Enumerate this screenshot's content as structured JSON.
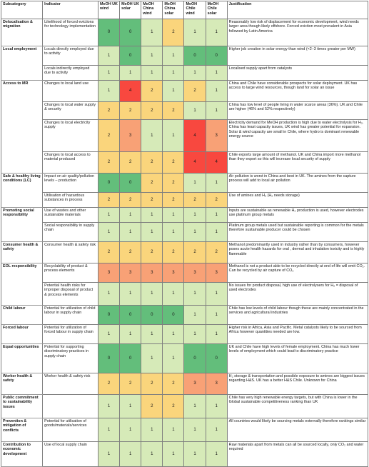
{
  "headers": [
    "Subcategory",
    "Indicator",
    "MeOH UK wind",
    "MeOH UK solar",
    "MeOH China wind",
    "MeOH China solar",
    "MeOH Chile wind",
    "MeOH Chile solar",
    "Justification"
  ],
  "score_colors": {
    "0": "#63be7b",
    "1": "#d6eab8",
    "2": "#fad57c",
    "3": "#f8a176",
    "4": "#f8483f"
  },
  "rows": [
    {
      "sub": "Delocalisation & migration",
      "span": 1,
      "ind": "Likelihood of forced evictions for technology implementation",
      "s": [
        0,
        0,
        1,
        2,
        1,
        1
      ],
      "just": "Reasonably low risk of displacement for economic development, wind needs larger area though likely offshore. Forced eviction most prevalent in Asia followed by Latin America",
      "h": 38
    },
    {
      "sub": "Local employment",
      "span": 2,
      "ind": "Locals directly employed due to activity",
      "s": [
        1,
        0,
        1,
        1,
        0,
        0
      ],
      "just": "Higher job creation in solar energy than wind (×2–3 times greater per MW)",
      "h": 27
    },
    {
      "ind": "Locals indirectly employed due to activity",
      "s": [
        1,
        1,
        1,
        1,
        1,
        1
      ],
      "just": "Localised supply apart from catalysts",
      "h": 21
    },
    {
      "sub": "Access to MR",
      "span": 4,
      "ind": "Changes to local land use",
      "s": [
        1,
        4,
        2,
        1,
        2,
        1
      ],
      "just": "China and Chile have considerable prospects for solar deployment. UK has access to large wind resources, though land for solar an issue",
      "h": 30
    },
    {
      "ind": "Changes to local water supply & security",
      "s": [
        2,
        2,
        2,
        2,
        1,
        1
      ],
      "just": "China has low level of people living in water scarce areas (36%). UK and Chile are higher (46% and 52% respectively)",
      "h": 25
    },
    {
      "ind": "Changes to local electricity supply",
      "s": [
        2,
        3,
        1,
        1,
        4,
        3
      ],
      "just": "Electricity demand for MeOH production is high due to water electrolysis for H₂. China has least capacity issues, UK wind has greater potential for expansion. Solar & wind capacity are small in Chile, where hydro is dominant renewable energy source",
      "h": 45
    },
    {
      "ind": "Changes to local access to material produced",
      "s": [
        2,
        2,
        2,
        2,
        4,
        4
      ],
      "just": "Chile exports large amount of methanol. UK and China import more methanol than they export so this will increase local security of supply",
      "h": 30
    },
    {
      "sub": "Safe & healthy living conditions (LC)",
      "span": 2,
      "ind": "Impact on air quality/pollution levels – production",
      "s": [
        0,
        0,
        2,
        2,
        1,
        1
      ],
      "just": "Air pollution is worst in China and best in UK. The amines from the capture process will add to local air pollution",
      "h": 27
    },
    {
      "ind": "Utilisation of hazardous substances in process",
      "s": [
        2,
        2,
        2,
        2,
        2,
        2
      ],
      "just": "Use of amines and H₂ (H₂ needs storage)",
      "h": 21
    },
    {
      "sub": "Promoting social responsibility",
      "span": 2,
      "ind": "Use of wastes and other sustainable materials",
      "s": [
        1,
        1,
        1,
        1,
        1,
        1
      ],
      "just": "Inputs are sustainable as renewable H₂ production is used, however electrodes use platinum group metals",
      "h": 21
    },
    {
      "ind": "Social responsibility in supply chain",
      "s": [
        1,
        1,
        1,
        1,
        1,
        1
      ],
      "just": "Platinum group metals used but sustainable reporting is common for the metals therefore sustainable producer could be chosen",
      "h": 27
    },
    {
      "sub": "Consumer health & safety",
      "span": 1,
      "ind": "Consumer health & safety risk",
      "s": [
        2,
        2,
        2,
        2,
        2,
        2
      ],
      "just": "Methanol predominantly used in industry rather than by consumers, however poses acute health hazards for oral , dermal and inhalation toxicity and is highly flammable",
      "h": 30
    },
    {
      "sub": "EOL responsibility",
      "span": 2,
      "ind": "Recyclability of product & process elements",
      "s": [
        3,
        3,
        3,
        3,
        3,
        3
      ],
      "just": "Methanol is not a product able to be recycled directly at end of life will emit CO₂. Can be recycled by air capture of CO₂",
      "h": 27
    },
    {
      "ind": "Potential health risks for improper disposal of product & process elements",
      "s": [
        1,
        1,
        1,
        1,
        1,
        1
      ],
      "just": "No issues for product disposal, high use of electrolysers for H₂ = disposal of used electrodes",
      "h": 32
    },
    {
      "sub": "Child labour",
      "span": 1,
      "ind": "Potential for utilization of child labour in supply chain",
      "s": [
        0,
        0,
        0,
        0,
        1,
        1
      ],
      "just": "Chile has low levels of child labour though these are mainly concentrated in the services and agricultural industries",
      "h": 27
    },
    {
      "sub": "Forced labour",
      "span": 1,
      "ind": "Potential for utilization of forced labour in supply chain",
      "s": [
        1,
        1,
        1,
        1,
        1,
        1
      ],
      "just": "Higher risk in Africa, Asia and Pacific. Metal catalysts likely to be sourced from Africa however quantities needed are low.",
      "h": 27
    },
    {
      "sub": "Equal opportunities",
      "span": 1,
      "ind": "Potential for supporting discriminatory practices in supply chain",
      "s": [
        0,
        0,
        1,
        1,
        0,
        0
      ],
      "just": "UK and Chile have high levels of female employment. China has much lower levels of employment which could lead to discriminatory practice",
      "h": 41
    },
    {
      "sub": "Worker health & safety",
      "span": 1,
      "ind": "Worker health & safety risk",
      "s": [
        2,
        2,
        2,
        2,
        3,
        3
      ],
      "just": "H₂ storage & transportation and possible exposure to amines are biggest issues regarding H&S. UK has a better H&S Chile. Unknown for China",
      "h": 30
    },
    {
      "sub": "Public commitment to sustainability issues",
      "span": 1,
      "ind": "",
      "s": [
        1,
        1,
        2,
        2,
        1,
        1
      ],
      "just": "Chile has very high renewable energy targets, but with China is lower in the Global sustainable competitiveness ranking than UK",
      "h": 33
    },
    {
      "sub": "Prevention & mitigation of conflicts",
      "span": 1,
      "ind": "Potential for utilisation of goods/materials/services",
      "s": [
        1,
        1,
        1,
        1,
        1,
        1
      ],
      "just": "All countries would likely be sourcing metals externally therefore rankings similar",
      "h": 33
    },
    {
      "sub": "Contribution to economic development",
      "span": 1,
      "ind": "Use of local supply chain",
      "s": [
        1,
        1,
        1,
        1,
        1,
        1
      ],
      "just": "Raw materials apart from metals can all be sourced locally, only CO₂ and water required",
      "h": 35
    }
  ]
}
